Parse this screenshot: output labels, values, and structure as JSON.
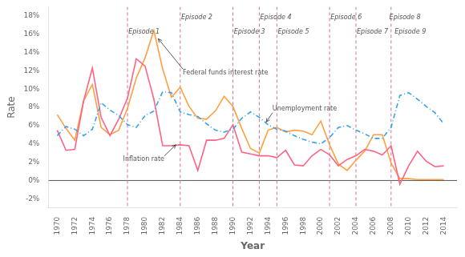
{
  "chart_data": {
    "type": "line",
    "xlabel": "Year",
    "ylabel": "Rate",
    "x": [
      1970,
      1971,
      1972,
      1973,
      1974,
      1975,
      1976,
      1977,
      1978,
      1979,
      1980,
      1981,
      1982,
      1983,
      1984,
      1985,
      1986,
      1987,
      1988,
      1989,
      1990,
      1991,
      1992,
      1993,
      1994,
      1995,
      1996,
      1997,
      1998,
      1999,
      2000,
      2001,
      2002,
      2003,
      2004,
      2005,
      2006,
      2007,
      2008,
      2009,
      2010,
      2011,
      2012,
      2013,
      2014
    ],
    "series": [
      {
        "name": "Unemployment rate",
        "line_style": "dashdot",
        "values": [
          4.9,
          5.9,
          5.6,
          4.9,
          5.6,
          8.5,
          7.7,
          7.1,
          6.1,
          5.8,
          7.1,
          7.6,
          9.7,
          9.6,
          7.5,
          7.2,
          7.0,
          6.2,
          5.5,
          5.3,
          5.6,
          6.8,
          7.5,
          6.9,
          6.1,
          5.6,
          5.4,
          4.9,
          4.5,
          4.2,
          4.0,
          4.7,
          5.8,
          6.0,
          5.5,
          5.1,
          4.6,
          4.6,
          5.8,
          9.3,
          9.6,
          8.9,
          8.1,
          7.4,
          6.2
        ]
      },
      {
        "name": "Inflation rate",
        "line_style": "solid",
        "values": [
          5.5,
          3.3,
          3.4,
          8.7,
          12.3,
          6.9,
          4.9,
          6.7,
          9.0,
          13.3,
          12.5,
          8.9,
          3.8,
          3.8,
          3.9,
          3.8,
          1.1,
          4.4,
          4.4,
          4.6,
          6.1,
          3.1,
          2.9,
          2.7,
          2.7,
          2.5,
          3.3,
          1.7,
          1.6,
          2.7,
          3.4,
          2.8,
          1.6,
          2.3,
          2.7,
          3.4,
          3.2,
          2.8,
          3.8,
          -0.4,
          1.6,
          3.2,
          2.1,
          1.5,
          1.6
        ]
      },
      {
        "name": "Federal funds interest rate",
        "line_style": "solid",
        "values": [
          7.2,
          5.7,
          4.4,
          8.7,
          10.5,
          5.8,
          5.0,
          5.5,
          7.9,
          11.2,
          13.4,
          16.4,
          12.2,
          9.1,
          10.2,
          8.1,
          6.8,
          6.7,
          7.6,
          9.2,
          8.1,
          5.7,
          3.5,
          3.0,
          5.5,
          5.8,
          5.3,
          5.5,
          5.4,
          5.0,
          6.5,
          3.9,
          1.8,
          1.1,
          2.2,
          3.2,
          5.0,
          5.0,
          1.9,
          0.2,
          0.2,
          0.1,
          0.1,
          0.1,
          0.1
        ]
      }
    ],
    "xlim": [
      1969.0,
      2015.5
    ],
    "xticks": [
      1970,
      1972,
      1974,
      1976,
      1978,
      1980,
      1982,
      1984,
      1986,
      1988,
      1990,
      1992,
      1994,
      1996,
      1998,
      2000,
      2002,
      2004,
      2006,
      2008,
      2010,
      2012,
      2014
    ],
    "ylim": [
      -3,
      19
    ],
    "yticks": [
      {
        "value": -2,
        "label": "-2%"
      },
      {
        "value": 0,
        "label": "0%"
      },
      {
        "value": 2,
        "label": "2%"
      },
      {
        "value": 4,
        "label": "4%"
      },
      {
        "value": 6,
        "label": "6%"
      },
      {
        "value": 8,
        "label": "8%"
      },
      {
        "value": 10,
        "label": "10%"
      },
      {
        "value": 12,
        "label": "12%"
      },
      {
        "value": 14,
        "label": "14%"
      },
      {
        "value": 16,
        "label": "16%"
      },
      {
        "value": 18,
        "label": "18%"
      }
    ],
    "grid": false,
    "hlines": [
      0
    ],
    "vlines": {
      "values": [
        1978,
        1984,
        1990,
        1993,
        1995,
        2001,
        2004,
        2008
      ],
      "color": "#d070a0"
    },
    "episode_labels": [
      {
        "text": "Episode 1",
        "x": 1978.1,
        "y": 16.6
      },
      {
        "text": "Episode 2",
        "x": 1984.1,
        "y": 18.2
      },
      {
        "text": "Episode 3",
        "x": 1990.1,
        "y": 16.6
      },
      {
        "text": "Episode 4",
        "x": 1993.1,
        "y": 18.2
      },
      {
        "text": "Episode 5",
        "x": 1995.1,
        "y": 16.6
      },
      {
        "text": "Episode 6",
        "x": 2001.1,
        "y": 18.2
      },
      {
        "text": "Episode 7",
        "x": 2004.1,
        "y": 16.6
      },
      {
        "text": "Episode 8",
        "x": 2007.8,
        "y": 18.2
      },
      {
        "text": "Episode 9",
        "x": 2008.4,
        "y": 16.6
      }
    ],
    "annotations": [
      {
        "text": "Federal funds interest rate",
        "xy": [
          1981.5,
          15.5
        ],
        "xytext": [
          1984.3,
          11.8
        ]
      },
      {
        "text": "Inflation rate",
        "xy": [
          1983.5,
          3.9
        ],
        "xytext": [
          1977.5,
          2.3
        ]
      },
      {
        "text": "Unemployment rate",
        "xy": [
          1993.8,
          6.4
        ],
        "xytext": [
          1994.5,
          7.8
        ]
      }
    ]
  }
}
